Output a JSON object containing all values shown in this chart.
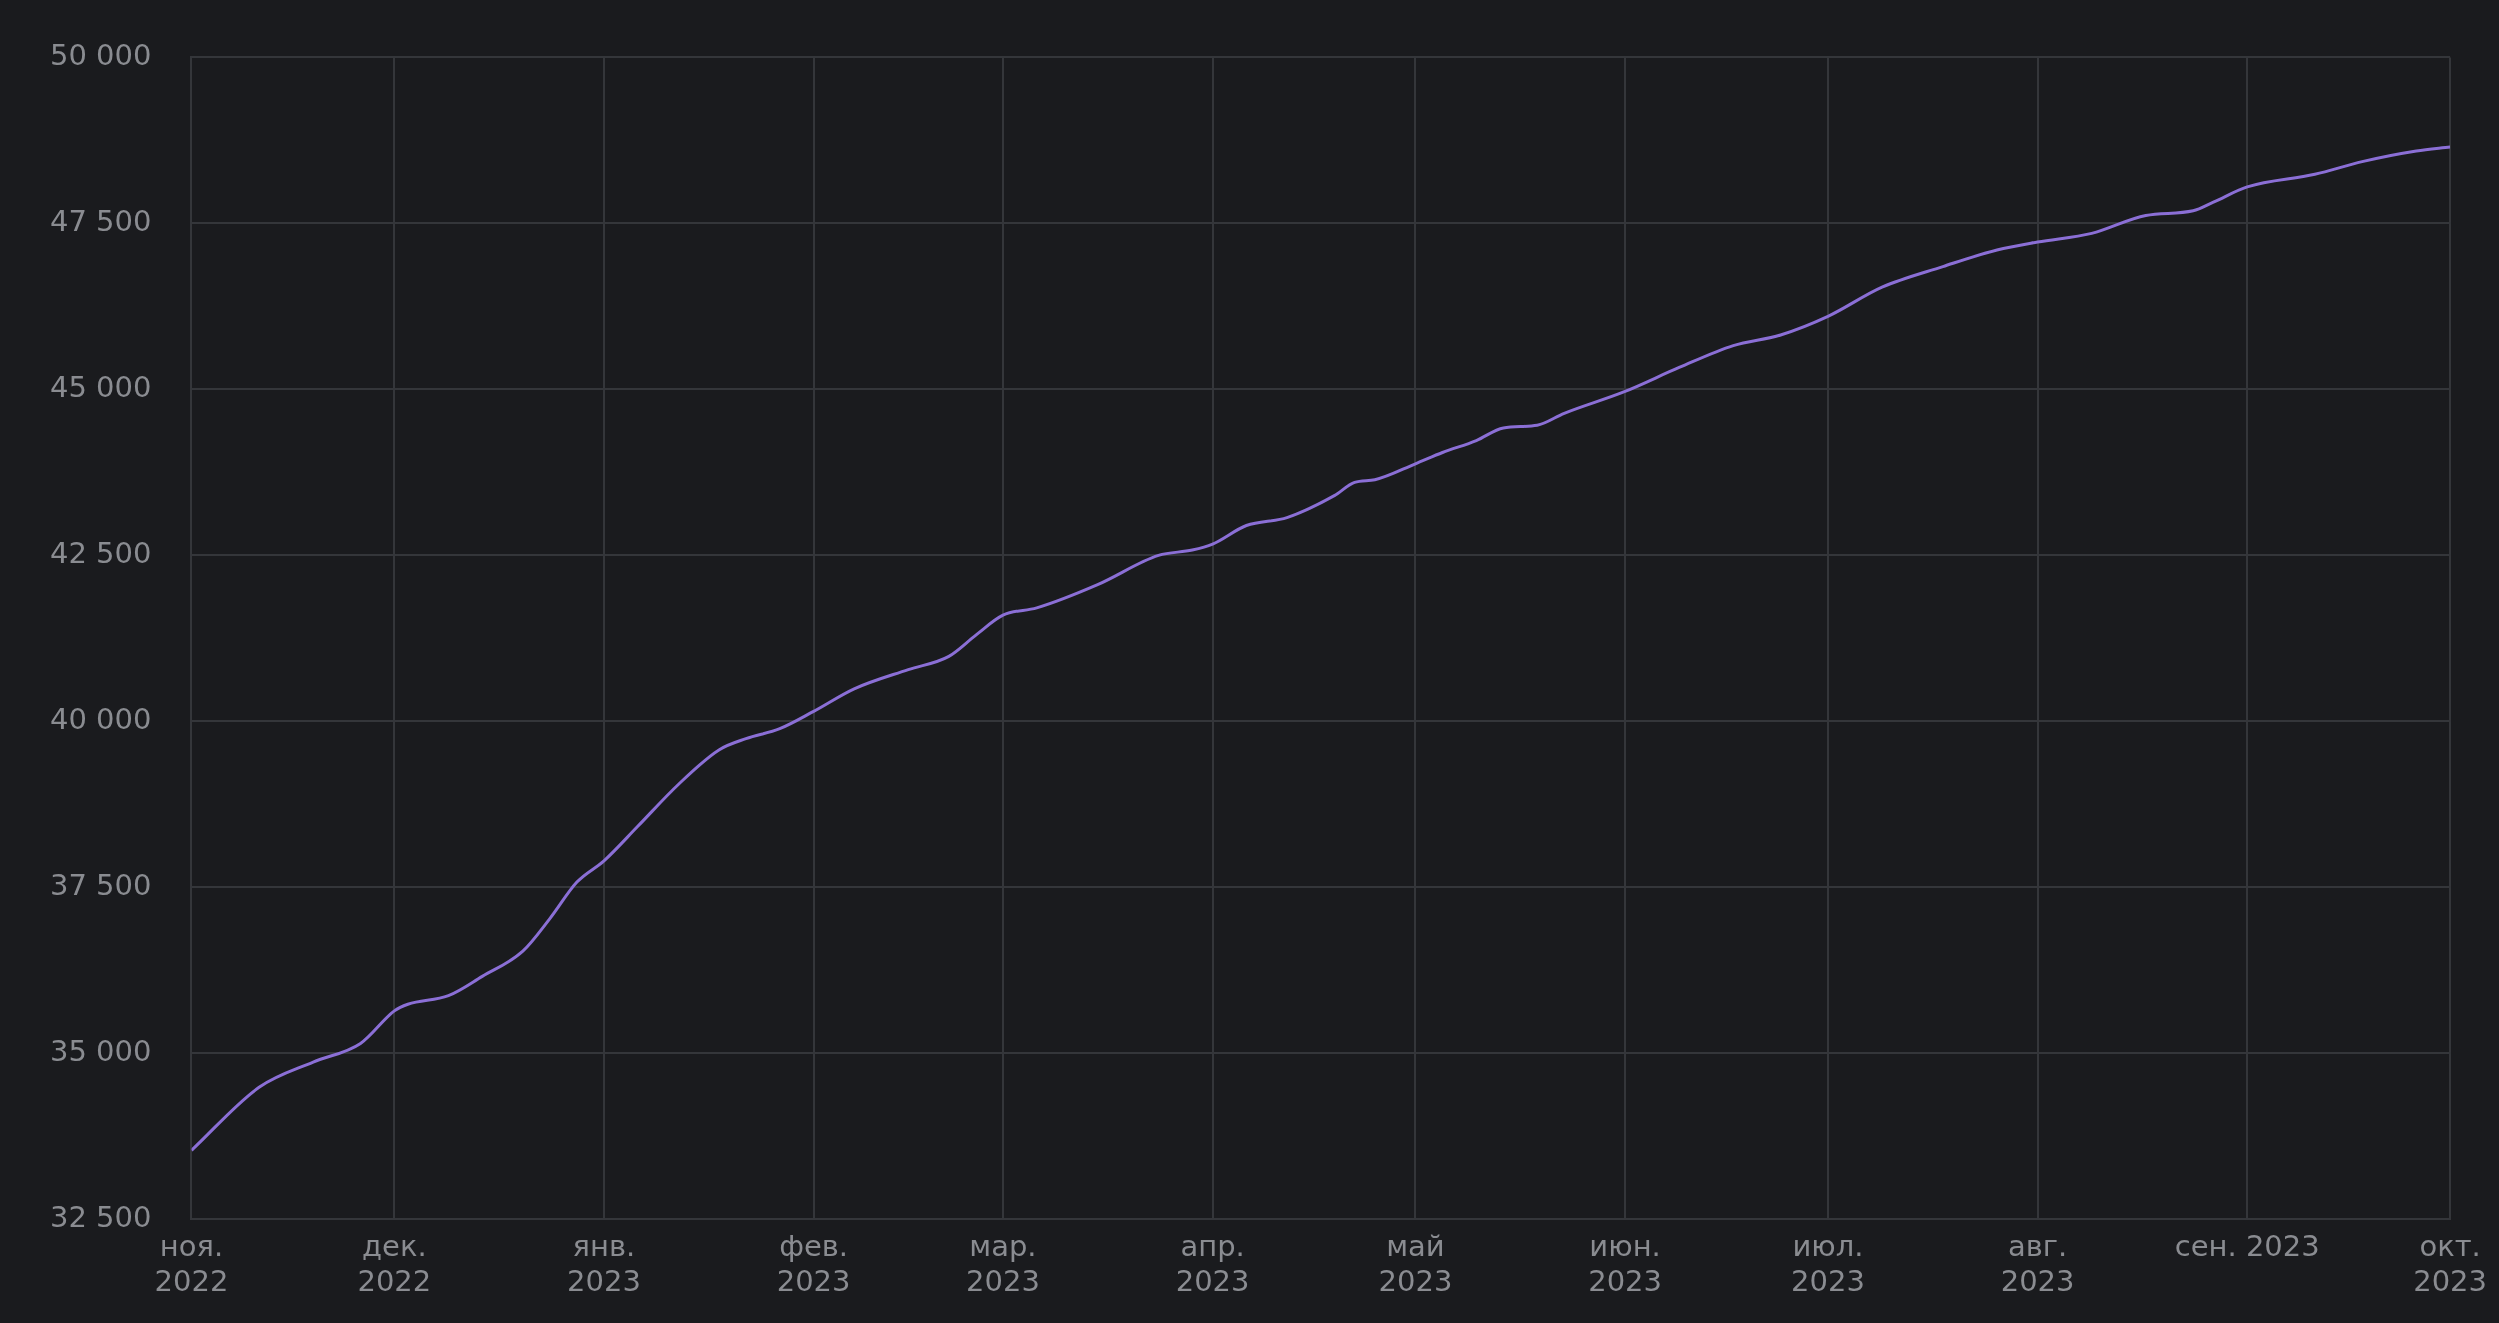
{
  "chart_data": {
    "type": "line",
    "x": [
      "2022-11-01",
      "2022-11-11",
      "2022-11-19",
      "2022-11-26",
      "2022-12-01",
      "2022-12-03",
      "2022-12-09",
      "2022-12-14",
      "2022-12-20",
      "2022-12-24",
      "2022-12-28",
      "2023-01-01",
      "2023-01-06",
      "2023-01-12",
      "2023-01-18",
      "2023-01-22",
      "2023-01-27",
      "2023-02-01",
      "2023-02-07",
      "2023-02-15",
      "2023-02-21",
      "2023-02-25",
      "2023-03-01",
      "2023-03-06",
      "2023-03-15",
      "2023-03-24",
      "2023-03-29",
      "2023-04-01",
      "2023-04-06",
      "2023-04-12",
      "2023-04-19",
      "2023-04-22",
      "2023-04-25",
      "2023-05-01",
      "2023-05-05",
      "2023-05-10",
      "2023-05-14",
      "2023-05-19",
      "2023-05-23",
      "2023-06-01",
      "2023-06-09",
      "2023-06-17",
      "2023-06-24",
      "2023-07-01",
      "2023-07-09",
      "2023-07-18",
      "2023-07-26",
      "2023-08-01",
      "2023-08-09",
      "2023-08-17",
      "2023-08-24",
      "2023-08-27",
      "2023-09-01",
      "2023-09-11",
      "2023-09-18",
      "2023-09-26",
      "2023-10-01"
    ],
    "series": [
      {
        "color": "#8b6fd6",
        "values": [
          33540,
          34490,
          34870,
          35150,
          35640,
          35740,
          35870,
          36160,
          36540,
          37030,
          37580,
          37900,
          38420,
          39050,
          39570,
          39740,
          39890,
          40150,
          40490,
          40780,
          40980,
          41300,
          41600,
          41710,
          42060,
          42500,
          42580,
          42670,
          42950,
          43070,
          43400,
          43600,
          43640,
          43880,
          44050,
          44230,
          44420,
          44460,
          44640,
          44970,
          45330,
          45660,
          45820,
          46100,
          46540,
          46850,
          47100,
          47220,
          47350,
          47620,
          47690,
          47820,
          48050,
          48240,
          48430,
          48590,
          48650
        ]
      }
    ],
    "xlim": [
      "2022-11-01",
      "2023-10-01"
    ],
    "xticks": [
      {
        "value": "2022-11-01",
        "label": "ноя.\n2022"
      },
      {
        "value": "2022-12-01",
        "label": "дек.\n2022"
      },
      {
        "value": "2023-01-01",
        "label": "янв.\n2023"
      },
      {
        "value": "2023-02-01",
        "label": "фев.\n2023"
      },
      {
        "value": "2023-03-01",
        "label": "мар.\n2023"
      },
      {
        "value": "2023-04-01",
        "label": "апр.\n2023"
      },
      {
        "value": "2023-05-01",
        "label": "май\n2023"
      },
      {
        "value": "2023-06-01",
        "label": "июн.\n2023"
      },
      {
        "value": "2023-07-01",
        "label": "июл.\n2023"
      },
      {
        "value": "2023-08-01",
        "label": "авг.\n2023"
      },
      {
        "value": "2023-09-01",
        "label": "сен. 2023"
      },
      {
        "value": "2023-10-01",
        "label": "окт.\n2023"
      }
    ],
    "ylim": [
      32500,
      50000
    ],
    "yticks": [
      {
        "value": 32500,
        "label": "32 500"
      },
      {
        "value": 35000,
        "label": "35 000"
      },
      {
        "value": 37500,
        "label": "37 500"
      },
      {
        "value": 40000,
        "label": "40 000"
      },
      {
        "value": 42500,
        "label": "42 500"
      },
      {
        "value": 45000,
        "label": "45 000"
      },
      {
        "value": 47500,
        "label": "47 500"
      },
      {
        "value": 50000,
        "label": "50 000"
      }
    ],
    "grid": true,
    "legend": false,
    "marker": "none",
    "line_style": "solid"
  }
}
